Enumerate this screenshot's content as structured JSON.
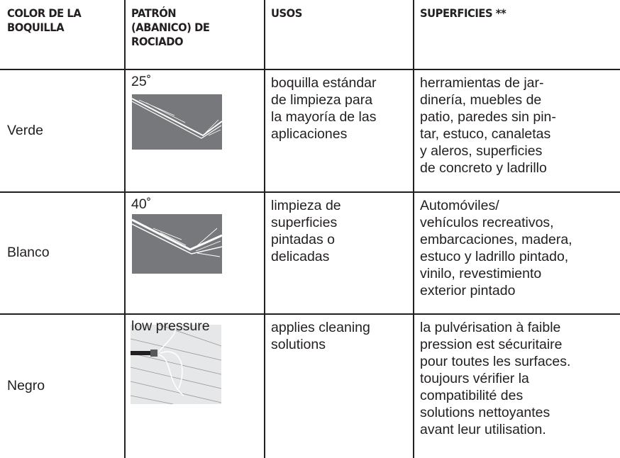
{
  "table": {
    "headers": [
      [
        "COLOR DE LA",
        "BOQUILLA"
      ],
      [
        "PATRÓN",
        "(ABANICO) DE",
        "ROCIADO"
      ],
      [
        "USOS"
      ],
      [
        "SUPERFICIES **"
      ]
    ],
    "rows": [
      {
        "color": "Verde",
        "pattern": "25˚",
        "uses": [
          "boquilla estándar",
          "de limpieza para",
          "la mayoría de las",
          "aplicaciones"
        ],
        "surfaces": [
          "herramientas de jar-",
          "dinería, muebles de",
          "patio, paredes sin pin-",
          "tar, estuco, canaletas",
          "y aleros, superficies",
          "de concreto y ladrillo"
        ]
      },
      {
        "color": "Blanco",
        "pattern": "40˚",
        "uses": [
          "limpieza de",
          "superficies",
          "pintadas o",
          "delicadas"
        ],
        "surfaces": [
          "Automóviles/",
          "vehículos recreativos,",
          "embarcaciones, madera,",
          "estuco y ladrillo pintado,",
          "vinilo, revestimiento",
          "exterior pintado"
        ]
      },
      {
        "color": "Negro",
        "pattern": "low pressure",
        "uses": [
          "applies cleaning",
          "solutions"
        ],
        "surfaces": [
          "la pulvérisation à faible",
          "pression est sécuritaire",
          "pour toutes les surfaces.",
          "toujours vérifier la",
          "compatibilité des",
          "solutions nettoyantes",
          "avant leur utilisation."
        ]
      }
    ]
  }
}
